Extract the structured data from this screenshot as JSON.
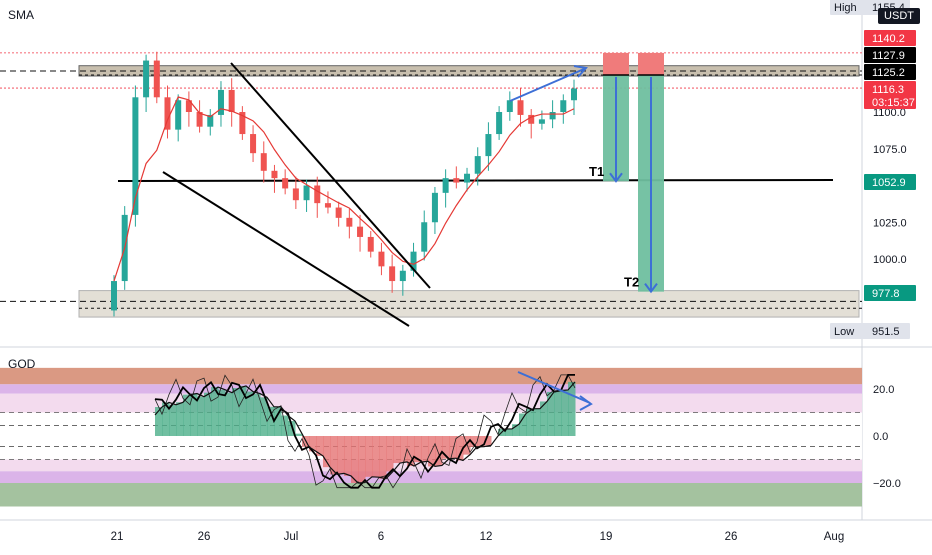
{
  "chart_data": [
    {
      "type": "candlestick",
      "title": "",
      "pane_label": "SMA",
      "currency": "USDT",
      "x_ticks": [
        "21",
        "26",
        "Jul",
        "6",
        "12",
        "19",
        "26",
        "Aug"
      ],
      "y_ticks": [
        1100.0,
        1075.0,
        1052.9,
        1025.0,
        1000.0,
        977.8
      ],
      "y_tick_labels": [
        "1100.0",
        "1075.0",
        "1052.9",
        "1025.0",
        "1000.0",
        "977.8"
      ],
      "ylim": [
        948,
        1160
      ],
      "price_tags": [
        {
          "label": "High",
          "value": "1155.4",
          "color": "#e0e3eb",
          "text_color": "#131722"
        },
        {
          "label": "",
          "value": "1140.2",
          "color": "#f23645",
          "text_color": "#ffffff"
        },
        {
          "label": "",
          "value": "1127.9",
          "color": "#000000",
          "text_color": "#ffffff"
        },
        {
          "label": "",
          "value": "1125.2",
          "color": "#000000",
          "text_color": "#ffffff"
        },
        {
          "label": "",
          "value": "1116.3",
          "subtext": "03:15:37",
          "color": "#f23645",
          "text_color": "#ffffff"
        },
        {
          "label": "",
          "value": "1052.9",
          "color": "#089981",
          "text_color": "#ffffff"
        },
        {
          "label": "",
          "value": "977.8",
          "color": "#089981",
          "text_color": "#ffffff"
        },
        {
          "label": "Low",
          "value": "951.5",
          "color": "#e0e3eb",
          "text_color": "#131722"
        }
      ],
      "zones": [
        {
          "name": "resistance",
          "from": 1124.5,
          "to": 1131.5
        },
        {
          "name": "support",
          "from": 960.5,
          "to": 978.5
        }
      ],
      "levels": [
        1127.9,
        1125.2,
        1052.9,
        971.2
      ],
      "targets": [
        {
          "label": "T1",
          "entry": 1125.2,
          "target": 1052.9
        },
        {
          "label": "T2",
          "entry": 1125.2,
          "target": 977.8
        }
      ],
      "series": [
        {
          "name": "",
          "approx_closes": [
            985,
            1030,
            1110,
            1135,
            1110,
            1088,
            1108,
            1100,
            1090,
            1098,
            1115,
            1100,
            1085,
            1072,
            1060,
            1055,
            1048,
            1040,
            1050,
            1038,
            1035,
            1028,
            1022,
            1015,
            1005,
            995,
            985,
            992,
            1005,
            1025,
            1045,
            1055,
            1052,
            1058,
            1070,
            1085,
            1100,
            1108,
            1098,
            1092,
            1095,
            1100,
            1108,
            1116
          ]
        }
      ]
    },
    {
      "type": "line",
      "title": "",
      "pane_label": "GOD",
      "y_ticks": [
        20.0,
        0.0,
        -20.0
      ],
      "y_tick_labels": [
        "20.0",
        "0.0",
        "−20.0"
      ],
      "ylim": [
        -30,
        29
      ]
    }
  ]
}
